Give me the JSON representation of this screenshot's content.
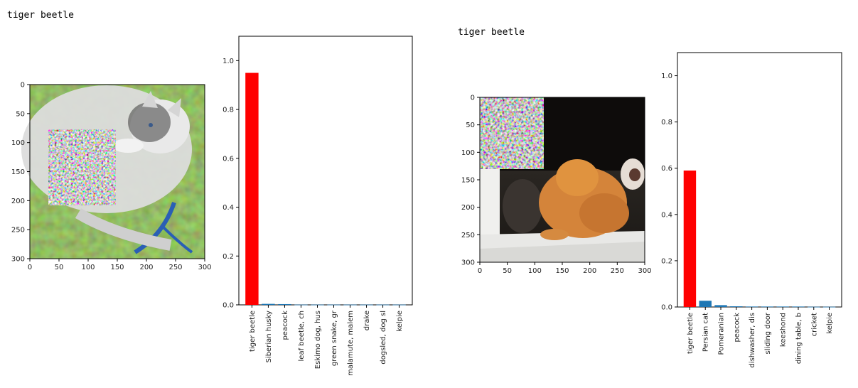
{
  "outputs": [
    {
      "label": "tiger beetle"
    },
    {
      "label": "tiger beetle"
    }
  ],
  "chart_data": [
    {
      "type": "image",
      "xlim": [
        0,
        300
      ],
      "ylim": [
        0,
        300
      ],
      "xticks": [
        "0",
        "50",
        "100",
        "150",
        "200",
        "250",
        "300"
      ],
      "yticks": [
        "0",
        "50",
        "100",
        "150",
        "200",
        "250",
        "300"
      ],
      "image_subject": "husky dog on grass with adversarial patch",
      "patch_extent": [
        35,
        150,
        78,
        208
      ]
    },
    {
      "type": "bar",
      "categories": [
        "tiger beetle",
        "Siberian husky",
        "peacock",
        "leaf beetle, ch",
        "Eskimo dog, hus",
        "green snake, gr",
        "malamute, malem",
        "drake",
        "dogsled, dog sl",
        "kelpie"
      ],
      "values": [
        0.95,
        0.004,
        0.003,
        0.001,
        0.001,
        0.001,
        0.001,
        0.001,
        0.001,
        0.001
      ],
      "colors": [
        "#ff0000",
        "#1f77b4",
        "#1f77b4",
        "#1f77b4",
        "#1f77b4",
        "#1f77b4",
        "#1f77b4",
        "#1f77b4",
        "#1f77b4",
        "#1f77b4"
      ],
      "ylim": [
        0,
        1.1
      ],
      "yticks": [
        "0.0",
        "0.2",
        "0.4",
        "0.6",
        "0.8",
        "1.0"
      ]
    },
    {
      "type": "image",
      "xlim": [
        0,
        300
      ],
      "ylim": [
        0,
        300
      ],
      "xticks": [
        "0",
        "50",
        "100",
        "150",
        "200",
        "250",
        "300"
      ],
      "yticks": [
        "0",
        "50",
        "100",
        "150",
        "200",
        "250",
        "300"
      ],
      "image_subject": "orange Persian cat at sliding door with adversarial patch",
      "patch_extent": [
        0,
        118,
        0,
        130
      ]
    },
    {
      "type": "bar",
      "categories": [
        "tiger beetle",
        "Persian cat",
        "Pomeranian",
        "peacock",
        "dishwasher, dis",
        "sliding door",
        "keeshond",
        "dining table, b",
        "cricket",
        "kelpie"
      ],
      "values": [
        0.59,
        0.027,
        0.008,
        0.003,
        0.002,
        0.002,
        0.002,
        0.002,
        0.001,
        0.001
      ],
      "colors": [
        "#ff0000",
        "#1f77b4",
        "#1f77b4",
        "#1f77b4",
        "#1f77b4",
        "#1f77b4",
        "#1f77b4",
        "#1f77b4",
        "#1f77b4",
        "#1f77b4"
      ],
      "ylim": [
        0,
        1.1
      ],
      "yticks": [
        "0.0",
        "0.2",
        "0.4",
        "0.6",
        "0.8",
        "1.0"
      ]
    }
  ]
}
